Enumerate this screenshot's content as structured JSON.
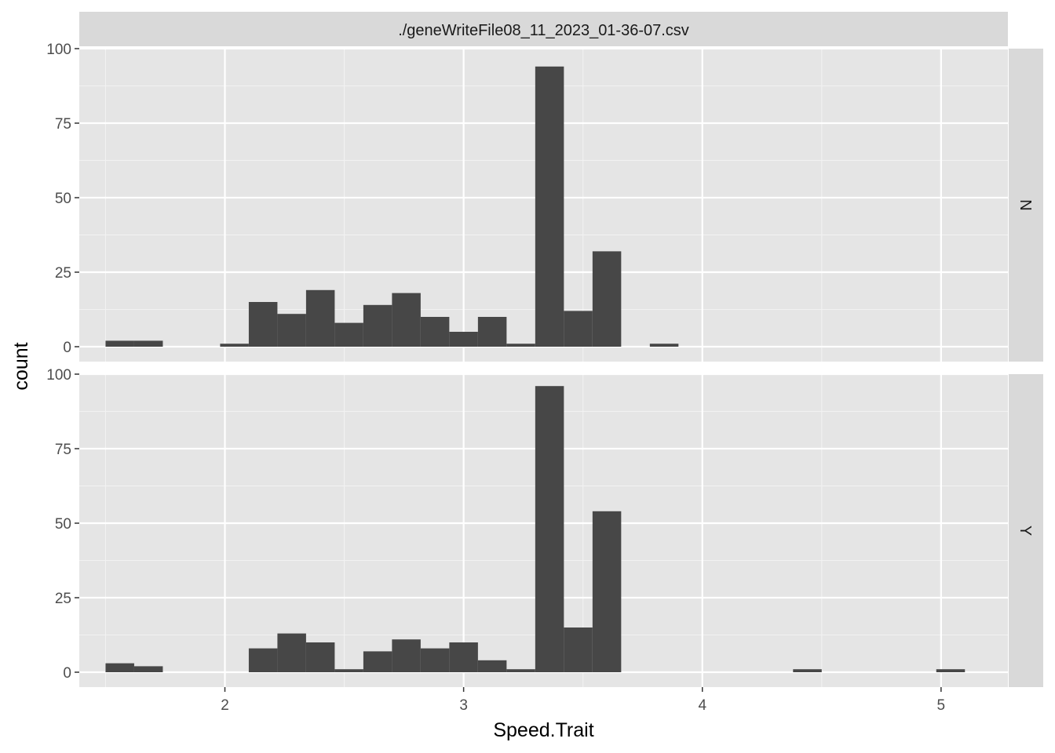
{
  "chart_data": {
    "type": "bar",
    "title": "./geneWriteFile08_11_2023_01-36-07.csv",
    "xlabel": "Speed.Trait",
    "ylabel": "count",
    "xlim": [
      1.39,
      5.28
    ],
    "ylim": [
      -5,
      100
    ],
    "x_ticks": [
      "2",
      "3",
      "4",
      "5"
    ],
    "y_ticks": [
      "0",
      "25",
      "50",
      "75",
      "100"
    ],
    "bin_width": 0.12,
    "grid": true,
    "colors": {
      "bar": "#474747",
      "panel": "#e5e5e5",
      "strip": "#d9d9d9",
      "grid": "#ffffff"
    },
    "panels": [
      {
        "name": "N",
        "bins": [
          {
            "x": 1.56,
            "count": 2
          },
          {
            "x": 1.68,
            "count": 2
          },
          {
            "x": 2.04,
            "count": 1
          },
          {
            "x": 2.16,
            "count": 15
          },
          {
            "x": 2.28,
            "count": 11
          },
          {
            "x": 2.4,
            "count": 19
          },
          {
            "x": 2.52,
            "count": 8
          },
          {
            "x": 2.64,
            "count": 14
          },
          {
            "x": 2.76,
            "count": 18
          },
          {
            "x": 2.88,
            "count": 10
          },
          {
            "x": 3.0,
            "count": 5
          },
          {
            "x": 3.12,
            "count": 10
          },
          {
            "x": 3.24,
            "count": 1
          },
          {
            "x": 3.36,
            "count": 94
          },
          {
            "x": 3.48,
            "count": 12
          },
          {
            "x": 3.6,
            "count": 32
          },
          {
            "x": 3.84,
            "count": 1
          }
        ]
      },
      {
        "name": "Y",
        "bins": [
          {
            "x": 1.56,
            "count": 3
          },
          {
            "x": 1.68,
            "count": 2
          },
          {
            "x": 2.16,
            "count": 8
          },
          {
            "x": 2.28,
            "count": 13
          },
          {
            "x": 2.4,
            "count": 10
          },
          {
            "x": 2.52,
            "count": 1
          },
          {
            "x": 2.64,
            "count": 7
          },
          {
            "x": 2.76,
            "count": 11
          },
          {
            "x": 2.88,
            "count": 8
          },
          {
            "x": 3.0,
            "count": 10
          },
          {
            "x": 3.12,
            "count": 4
          },
          {
            "x": 3.24,
            "count": 1
          },
          {
            "x": 3.36,
            "count": 96
          },
          {
            "x": 3.48,
            "count": 15
          },
          {
            "x": 3.6,
            "count": 54
          },
          {
            "x": 4.44,
            "count": 1
          },
          {
            "x": 5.04,
            "count": 1
          }
        ]
      }
    ]
  }
}
